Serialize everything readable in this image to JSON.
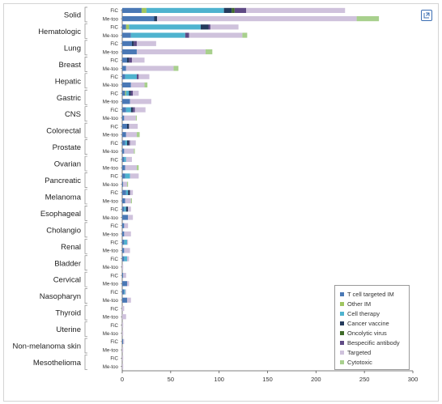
{
  "colors": {
    "T cell targeted IM": "#4a78b5",
    "Other IM": "#9fc560",
    "Cell therapy": "#4fb3cf",
    "Cancer vaccine": "#243a5c",
    "Oncolytic virus": "#3f6b2a",
    "Bespecific antibody": "#5f4a85",
    "Targeted": "#cfc2dc",
    "Cytotoxic": "#a8d08d"
  },
  "icons": {
    "expand": "expand-icon"
  },
  "chart_data": {
    "type": "bar",
    "orientation": "horizontal",
    "stacked": true,
    "xlim": [
      0,
      300
    ],
    "xticks": [
      0,
      50,
      100,
      150,
      200,
      250,
      300
    ],
    "xtick_labels": [
      "0",
      "50",
      "100",
      "150",
      "200",
      "250",
      "300"
    ],
    "grid": false,
    "legend_position": "bottom-right",
    "series_order": [
      "T cell targeted IM",
      "Other IM",
      "Cell therapy",
      "Cancer vaccine",
      "Oncolytic virus",
      "Bespecific antibody",
      "Targeted",
      "Cytotoxic"
    ],
    "legend": [
      "T cell targeted IM",
      "Other IM",
      "Cell therapy",
      "Cancer vaccine",
      "Oncolytic virus",
      "Bespecific antibody",
      "Targeted",
      "Cytotoxic"
    ],
    "groups": [
      {
        "name": "Solid",
        "bars": [
          {
            "label": "FiC",
            "values": [
              20,
              5,
              80,
              8,
              3,
              12,
              102,
              0
            ]
          },
          {
            "label": "Me-too",
            "values": [
              33,
              0,
              0,
              3,
              0,
              0,
              206,
              23
            ]
          }
        ]
      },
      {
        "name": "Hematologic",
        "bars": [
          {
            "label": "FiC",
            "values": [
              4,
              3,
              74,
              8,
              0,
              2,
              29,
              0
            ]
          },
          {
            "label": "Me-too",
            "values": [
              9,
              0,
              56,
              0,
              0,
              4,
              55,
              5
            ]
          }
        ]
      },
      {
        "name": "Lung",
        "bars": [
          {
            "label": "FiC",
            "values": [
              10,
              0,
              0,
              2,
              0,
              3,
              20,
              0
            ]
          },
          {
            "label": "Me-too",
            "values": [
              15,
              0,
              0,
              0,
              0,
              0,
              71,
              7
            ]
          }
        ]
      },
      {
        "name": "Breast",
        "bars": [
          {
            "label": "FiC",
            "values": [
              5,
              0,
              0,
              2,
              0,
              3,
              13,
              0
            ]
          },
          {
            "label": "Me-too",
            "values": [
              4,
              0,
              0,
              0,
              0,
              0,
              49,
              5
            ]
          }
        ]
      },
      {
        "name": "Hepatic",
        "bars": [
          {
            "label": "FiC",
            "values": [
              3,
              0,
              12,
              0,
              0,
              2,
              11,
              0
            ]
          },
          {
            "label": "Me-too",
            "values": [
              9,
              0,
              0,
              0,
              0,
              0,
              14,
              3
            ]
          }
        ]
      },
      {
        "name": "Gastric",
        "bars": [
          {
            "label": "FiC",
            "values": [
              3,
              1,
              3,
              2,
              0,
              2,
              6,
              0
            ]
          },
          {
            "label": "Me-too",
            "values": [
              8,
              0,
              0,
              0,
              0,
              0,
              22,
              0
            ]
          }
        ]
      },
      {
        "name": "CNS",
        "bars": [
          {
            "label": "FiC",
            "values": [
              4,
              0,
              5,
              2,
              0,
              2,
              11,
              0
            ]
          },
          {
            "label": "Me-too",
            "values": [
              2,
              0,
              0,
              0,
              0,
              0,
              12,
              1
            ]
          }
        ]
      },
      {
        "name": "Colorectal",
        "bars": [
          {
            "label": "FiC",
            "values": [
              5,
              0,
              0,
              2,
              0,
              0,
              9,
              0
            ]
          },
          {
            "label": "Me-too",
            "values": [
              4,
              0,
              0,
              0,
              0,
              0,
              11,
              3
            ]
          }
        ]
      },
      {
        "name": "Prostate",
        "bars": [
          {
            "label": "FiC",
            "values": [
              3,
              0,
              2,
              2,
              0,
              1,
              6,
              0
            ]
          },
          {
            "label": "Me-too",
            "values": [
              2,
              0,
              0,
              0,
              0,
              0,
              10,
              1
            ]
          }
        ]
      },
      {
        "name": "Ovarian",
        "bars": [
          {
            "label": "FiC",
            "values": [
              2,
              0,
              2,
              0,
              0,
              0,
              6,
              0
            ]
          },
          {
            "label": "Me-too",
            "values": [
              3,
              0,
              0,
              0,
              0,
              0,
              12,
              2
            ]
          }
        ]
      },
      {
        "name": "Pancreatic",
        "bars": [
          {
            "label": "FiC",
            "values": [
              3,
              0,
              5,
              0,
              0,
              0,
              9,
              0
            ]
          },
          {
            "label": "Me-too",
            "values": [
              1,
              0,
              0,
              0,
              0,
              0,
              4,
              1
            ]
          }
        ]
      },
      {
        "name": "Melanoma",
        "bars": [
          {
            "label": "FiC",
            "values": [
              4,
              0,
              2,
              2,
              0,
              0,
              3,
              0
            ]
          },
          {
            "label": "Me-too",
            "values": [
              3,
              0,
              0,
              0,
              0,
              0,
              6,
              1
            ]
          }
        ]
      },
      {
        "name": "Esophageal",
        "bars": [
          {
            "label": "FiC",
            "values": [
              2,
              0,
              2,
              2,
              0,
              0,
              3,
              0
            ]
          },
          {
            "label": "Me-too",
            "values": [
              6,
              0,
              0,
              0,
              0,
              0,
              5,
              0
            ]
          }
        ]
      },
      {
        "name": "Cholangio",
        "bars": [
          {
            "label": "FiC",
            "values": [
              2,
              0,
              0,
              0,
              0,
              0,
              4,
              0
            ]
          },
          {
            "label": "Me-too",
            "values": [
              2,
              0,
              0,
              0,
              0,
              0,
              7,
              0
            ]
          }
        ]
      },
      {
        "name": "Renal",
        "bars": [
          {
            "label": "FiC",
            "values": [
              2,
              0,
              3,
              0,
              0,
              0,
              1,
              0
            ]
          },
          {
            "label": "Me-too",
            "values": [
              2,
              0,
              0,
              0,
              0,
              0,
              6,
              0
            ]
          }
        ]
      },
      {
        "name": "Bladder",
        "bars": [
          {
            "label": "FiC",
            "values": [
              2,
              0,
              3,
              0,
              0,
              0,
              2,
              0
            ]
          },
          {
            "label": "Me-too",
            "values": [
              0,
              0,
              0,
              0,
              0,
              0,
              1,
              0
            ]
          }
        ]
      },
      {
        "name": "Cervical",
        "bars": [
          {
            "label": "FiC",
            "values": [
              1,
              0,
              0,
              0,
              0,
              0,
              3,
              0
            ]
          },
          {
            "label": "Me-too",
            "values": [
              5,
              0,
              0,
              0,
              0,
              0,
              2,
              0
            ]
          }
        ]
      },
      {
        "name": "Nasopharyn",
        "bars": [
          {
            "label": "FiC",
            "values": [
              2,
              0,
              1,
              0,
              0,
              0,
              1,
              0
            ]
          },
          {
            "label": "Me-too",
            "values": [
              5,
              0,
              0,
              0,
              0,
              0,
              4,
              0
            ]
          }
        ]
      },
      {
        "name": "Thyroid",
        "bars": [
          {
            "label": "FiC",
            "values": [
              0,
              0,
              0,
              0,
              0,
              0,
              2,
              0
            ]
          },
          {
            "label": "Me-too",
            "values": [
              0,
              0,
              0,
              0,
              0,
              0,
              4,
              0
            ]
          }
        ]
      },
      {
        "name": "Uterine",
        "bars": [
          {
            "label": "FiC",
            "values": [
              0,
              0,
              0,
              0,
              0,
              0,
              1,
              0
            ]
          },
          {
            "label": "Me-too",
            "values": [
              0,
              0,
              0,
              0,
              0,
              0,
              1,
              0
            ]
          }
        ]
      },
      {
        "name": "Non-melanoma skin",
        "bars": [
          {
            "label": "FiC",
            "values": [
              1,
              0,
              0,
              0,
              0,
              0,
              1,
              0
            ]
          },
          {
            "label": "Me-too",
            "values": [
              0,
              0,
              0,
              0,
              0,
              0,
              1,
              0
            ]
          }
        ]
      },
      {
        "name": "Mesothelioma",
        "bars": [
          {
            "label": "FiC",
            "values": [
              0,
              0,
              0,
              0,
              0,
              0,
              1,
              0
            ]
          },
          {
            "label": "Me-too",
            "values": [
              0,
              0,
              0,
              0,
              0,
              0,
              1,
              0
            ]
          }
        ]
      }
    ]
  }
}
